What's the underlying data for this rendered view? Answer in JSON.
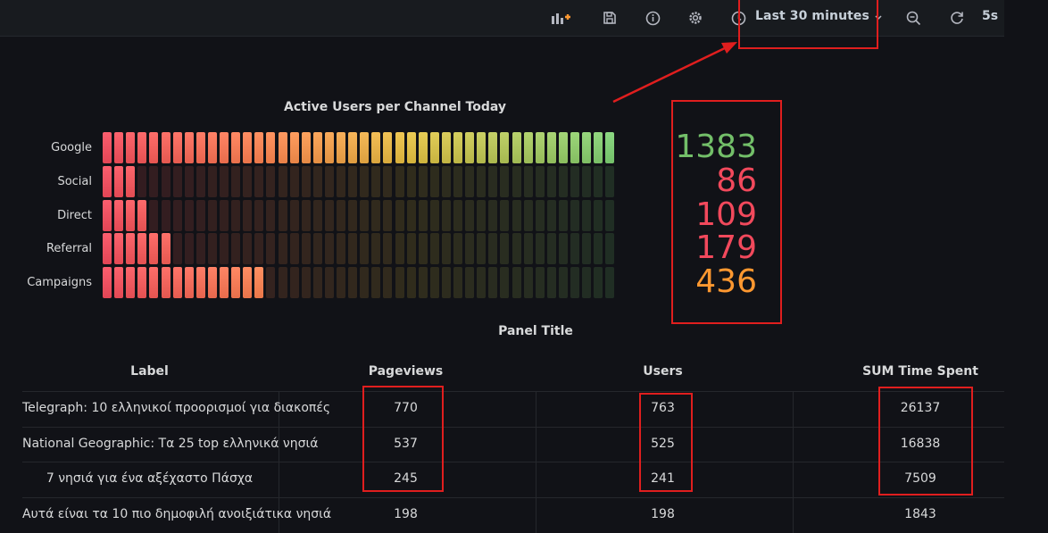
{
  "toolbar": {
    "time_range": "Last 30 minutes",
    "refresh_interval": "5s",
    "icons": [
      "add-panel-icon",
      "save-icon",
      "info-icon",
      "settings-icon",
      "clock-icon",
      "chevron-down-icon",
      "zoom-out-icon",
      "refresh-icon"
    ]
  },
  "chart": {
    "title": "Active Users per Channel Today",
    "rows": [
      {
        "label": "Google",
        "lit": 44,
        "value": "1383",
        "color": "#73bf69"
      },
      {
        "label": "Social",
        "lit": 3,
        "value": "86",
        "color": "#f2495c"
      },
      {
        "label": "Direct",
        "lit": 4,
        "value": "109",
        "color": "#f2495c"
      },
      {
        "label": "Referral",
        "lit": 6,
        "value": "179",
        "color": "#f2495c"
      },
      {
        "label": "Campaigns",
        "lit": 14,
        "value": "436",
        "color": "#ff9830"
      }
    ],
    "total_cells": 44
  },
  "table": {
    "title": "Panel Title",
    "columns": [
      "Label",
      "Pageviews",
      "Users",
      "SUM Time Spent"
    ],
    "rows": [
      [
        "Telegraph: 10 ελληνικοί προορισμοί για διακοπές",
        "770",
        "763",
        "26137"
      ],
      [
        "National Geographic: Τα 25 top ελληνικά νησιά",
        "537",
        "525",
        "16838"
      ],
      [
        "7 νησιά για ένα αξέχαστο Πάσχα",
        "245",
        "241",
        "7509"
      ],
      [
        "Αυτά είναι τα 10 πιο δημοφιλή ανοιξιάτικα νησιά",
        "198",
        "198",
        "1843"
      ]
    ]
  }
}
